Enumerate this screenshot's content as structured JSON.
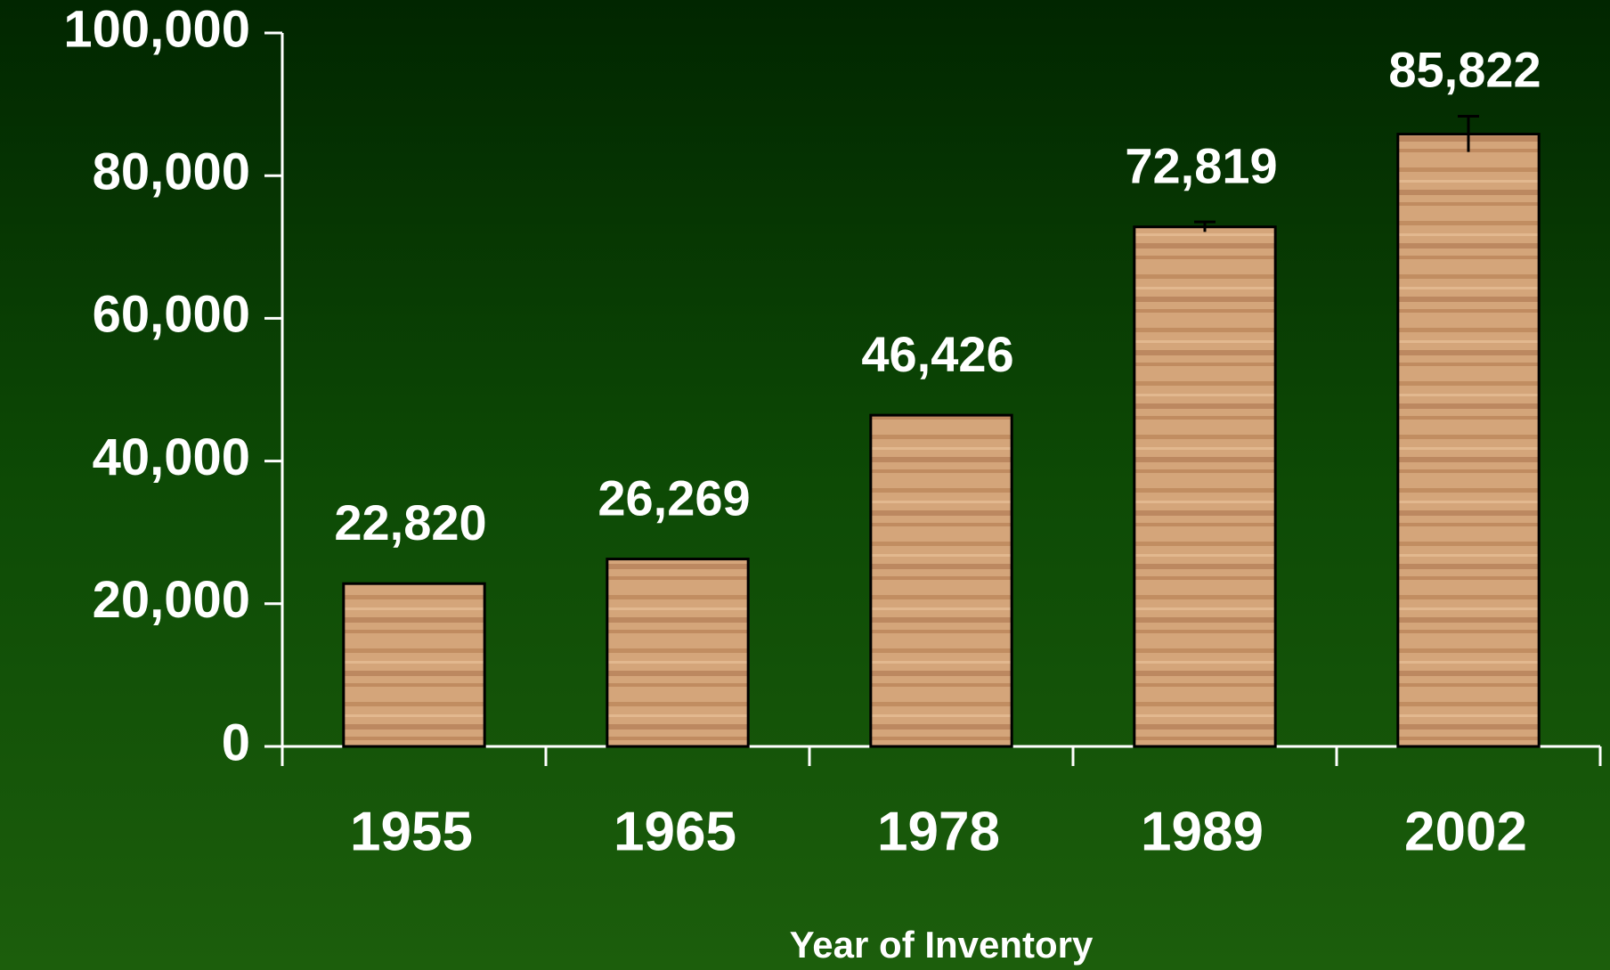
{
  "chart_data": {
    "type": "bar",
    "categories": [
      "1955",
      "1965",
      "1978",
      "1989",
      "2002"
    ],
    "values": [
      22820,
      26269,
      46426,
      72819,
      85822
    ],
    "value_labels": [
      "22,820",
      "26,269",
      "46,426",
      "72,819",
      "85,822"
    ],
    "errors": [
      null,
      null,
      null,
      700,
      2500
    ],
    "color": "#c8956a",
    "xlabel": "Year of Inventory",
    "ylim": [
      0,
      100000
    ],
    "yticks": [
      0,
      {
        "value": 20000,
        "label": "20,000"
      },
      {
        "value": 40000,
        "label": "40,000"
      },
      {
        "value": 60000,
        "label": "60,000"
      },
      {
        "value": 80000,
        "label": "80,000"
      },
      {
        "value": 100000,
        "label": "100,000"
      }
    ]
  }
}
